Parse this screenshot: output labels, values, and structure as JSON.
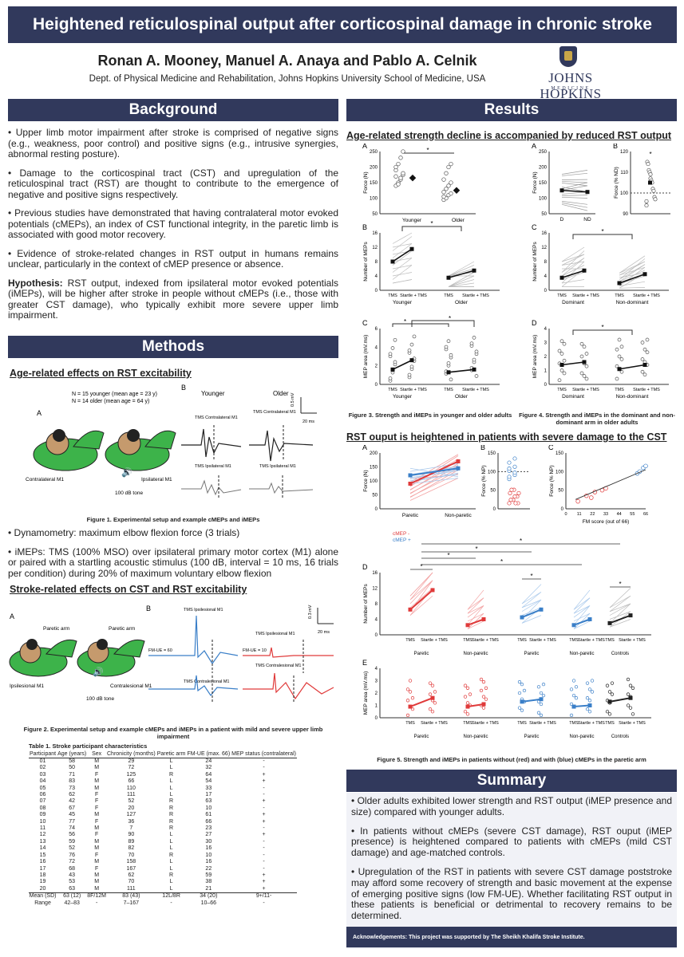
{
  "title": "Heightened reticulospinal output after corticospinal damage in chronic stroke",
  "authors": "Ronan A. Mooney, Manuel A. Anaya and Pablo A. Celnik",
  "affiliation": "Dept. of Physical Medicine and Rehabilitation, Johns Hopkins University School of Medicine, USA",
  "logo": {
    "name": "JOHNS HOPKINS",
    "sub": "MEDICINE"
  },
  "background": {
    "heading": "Background",
    "bullets": [
      "• Upper limb motor impairment after stroke is comprised of negative signs (e.g., weakness, poor control) and positive signs (e.g., intrusive synergies, abnormal resting posture).",
      "• Damage to the corticospinal tract (CST) and upregulation of the reticulospinal tract (RST) are thought to contribute to the emergence of negative and positive signs respectively.",
      "• Previous studies have demonstrated that having contralateral motor evoked potentials (cMEPs), an index of CST functional integrity, in the paretic limb is associated with good motor recovery.",
      "• Evidence of stroke-related changes in RST output in humans remains unclear, particularly in the context of cMEP presence or absence."
    ],
    "hypothesis_label": "Hypothesis:",
    "hypothesis_text": " RST output, indexed from ipsilateral motor evoked potentials (iMEPs), will be higher after stroke in people without cMEPs (i.e., those with greater CST damage), who typically exhibit more severe upper limb impairment."
  },
  "methods": {
    "heading": "Methods",
    "sub1": "Age-related effects on RST excitability",
    "fig1": {
      "n_young": "N = 15 younger (mean age = 23 y)",
      "n_old": "N = 14 older (mean age = 64 y)",
      "panel_a": "A",
      "panel_b": "B",
      "younger": "Younger",
      "older": "Older",
      "contra_m1": "Contralateral M1",
      "ipsi_m1": "Ipsilateral M1",
      "tone": "100 dB tone",
      "tms_contra": "TMS Contralateral M1",
      "tms_ipsi": "TMS Ipsilateral M1",
      "scale_mv": "0.5 mV",
      "scale_ms": "20 ms",
      "caption": "Figure 1. Experimental setup and example cMEPs and iMEPs"
    },
    "bullet_dyn": "• Dynamometry: maximum elbow flexion force (3 trials)",
    "bullet_imep": "• iMEPs: TMS (100% MSO) over ipsilateral primary motor cortex (M1) alone or paired with a startling acoustic stimulus (100 dB, interval = 10 ms, 16 trials per condition) during 20% of maximum voluntary elbow flexion",
    "sub2": "Stroke-related effects on CST and RST excitability",
    "fig2": {
      "panel_a": "A",
      "panel_b": "B",
      "paretic_arm": "Paretic arm",
      "ipsilesional": "Ipsilesional M1",
      "contralesional": "Contralesional M1",
      "tone": "100 dB tone",
      "tms_ipsilesional": "TMS Ipsilesional M1",
      "tms_contralesional": "TMS Contralesional M1",
      "fmue_60": "FM-UE = 60",
      "fmue_10": "FM-UE = 10",
      "scale_mv": "0.3 mV",
      "scale_ms": "20 ms",
      "caption": "Figure 2. Experimental setup and example cMEPs and iMEPs in a patient with mild and severe upper limb impairment"
    },
    "table": {
      "caption": "Table 1. Stroke participant characteristics",
      "headers": [
        "Participant",
        "Age (years)",
        "Sex",
        "Chronicity (months)",
        "Paretic arm",
        "FM-UE (max. 66)",
        "MEP status (contralateral)"
      ],
      "rows": [
        [
          "01",
          "58",
          "M",
          "29",
          "L",
          "24",
          "-"
        ],
        [
          "02",
          "50",
          "M",
          "72",
          "L",
          "32",
          "-"
        ],
        [
          "03",
          "71",
          "F",
          "125",
          "R",
          "64",
          "+"
        ],
        [
          "04",
          "83",
          "M",
          "66",
          "L",
          "54",
          "+"
        ],
        [
          "05",
          "73",
          "M",
          "110",
          "L",
          "33",
          "-"
        ],
        [
          "06",
          "62",
          "F",
          "111",
          "L",
          "17",
          "-"
        ],
        [
          "07",
          "42",
          "F",
          "52",
          "R",
          "63",
          "+"
        ],
        [
          "08",
          "67",
          "F",
          "20",
          "R",
          "10",
          "-"
        ],
        [
          "09",
          "45",
          "M",
          "127",
          "R",
          "61",
          "+"
        ],
        [
          "10",
          "77",
          "F",
          "36",
          "R",
          "66",
          "+"
        ],
        [
          "11",
          "74",
          "M",
          "7",
          "R",
          "23",
          "-"
        ],
        [
          "12",
          "56",
          "F",
          "90",
          "L",
          "27",
          "+"
        ],
        [
          "13",
          "59",
          "M",
          "89",
          "L",
          "30",
          "-"
        ],
        [
          "14",
          "52",
          "M",
          "82",
          "L",
          "16",
          "-"
        ],
        [
          "15",
          "76",
          "F",
          "70",
          "R",
          "10",
          "-"
        ],
        [
          "16",
          "72",
          "M",
          "158",
          "L",
          "16",
          "-"
        ],
        [
          "17",
          "68",
          "F",
          "167",
          "L",
          "22",
          "-"
        ],
        [
          "18",
          "43",
          "M",
          "62",
          "R",
          "59",
          "+"
        ],
        [
          "19",
          "53",
          "M",
          "70",
          "L",
          "38",
          "+"
        ],
        [
          "20",
          "63",
          "M",
          "111",
          "L",
          "21",
          "+"
        ]
      ],
      "mean_row": [
        "Mean (SD)",
        "63 (12)",
        "8F/12M",
        "83 (43)",
        "12L/8R",
        "34 (20)",
        "9+/11-"
      ],
      "range_row": [
        "Range",
        "42–83",
        "-",
        "7–167",
        "-",
        "10–66",
        "-"
      ]
    }
  },
  "results": {
    "heading": "Results",
    "sub1": "Age-related strength decline is accompanied by reduced RST output",
    "fig3_caption": "Figure 3. Strength and iMEPs in younger and older adults",
    "fig4_caption": "Figure 4. Strength and iMEPs in the dominant and non-dominant arm in older adults",
    "sub2": "RST ouput is heightened in patients with severe damage to the CST",
    "fig5_caption": "Figure 5. Strength and iMEPs in patients without (red) and with (blue) cMEPs in the paretic arm",
    "labels": {
      "force_n": "Force (N)",
      "force_nd": "Force (% ND)",
      "force_np": "Force (% NP)",
      "num_meps": "Number of MEPs",
      "mep_area": "MEP area (mV.ms)",
      "younger": "Younger",
      "older": "Older",
      "d": "D",
      "nd": "ND",
      "dominant": "Dominant",
      "non_dominant": "Non-dominant",
      "tms": "TMS",
      "startle": "Startle + TMS",
      "paretic": "Paretic",
      "non_paretic": "Non-paretic",
      "controls": "Controls",
      "fm_score": "FM score (out of 66)",
      "cmep_neg": "cMEP -",
      "cmep_pos": "cMEP +",
      "star": "*",
      "A": "A",
      "B": "B",
      "C": "C",
      "D": "D",
      "E": "E"
    },
    "colors": {
      "red": "#e03a3a",
      "blue": "#3a7fc8",
      "navy": "#31395c"
    },
    "ticks": {
      "f3a": [
        "250",
        "200",
        "150",
        "100",
        "50"
      ],
      "f4a": [
        "250",
        "200",
        "150",
        "100",
        "50"
      ],
      "f4b": [
        "120",
        "110",
        "100",
        "90"
      ],
      "count": [
        "16",
        "12",
        "8",
        "4",
        "0"
      ],
      "area": [
        "6",
        "4",
        "2",
        "0"
      ],
      "f5a": [
        "200",
        "150",
        "100",
        "50",
        "0"
      ],
      "f5b": [
        "150",
        "100",
        "50",
        "0"
      ],
      "f5c": [
        "150",
        "100",
        "50",
        "0"
      ],
      "f5c_x": [
        "0",
        "11",
        "22",
        "33",
        "44",
        "55",
        "66"
      ],
      "f5e": [
        "4",
        "3",
        "2",
        "1",
        "0"
      ]
    }
  },
  "summary": {
    "heading": "Summary",
    "bullets": [
      "• Older adults exhibited lower strength and RST output (iMEP presence and size) compared with younger adults.",
      "• In patients without cMEPs (severe CST damage), RST ouput (iMEP presence) is heightened compared to patients with cMEPs (mild CST damage) and age-matched controls.",
      "• Upregulation of the RST in patients with severe CST damage poststroke may afford some recovery of strength and basic movement at the expense of emerging positive signs (low FM-UE). Whether facilitating RST output in these patients is beneficial or detrimental to recovery remains to  be determined."
    ]
  },
  "acknowledgements": "Acknowledgements: This project was supported by The Sheikh Khalifa Stroke Institute.",
  "chart_data": [
    {
      "type": "scatter",
      "panel": "Fig3A",
      "ylabel": "Force (N)",
      "categories": [
        "Younger",
        "Older"
      ],
      "means": [
        165,
        125
      ],
      "ylim": [
        50,
        250
      ]
    },
    {
      "type": "line",
      "panel": "Fig3B",
      "ylabel": "Number of MEPs",
      "categories": [
        "TMS",
        "Startle + TMS"
      ],
      "series": [
        {
          "name": "Younger",
          "values": [
            8,
            11.5
          ]
        },
        {
          "name": "Older",
          "values": [
            3.5,
            5.5
          ]
        }
      ],
      "ylim": [
        0,
        16
      ]
    },
    {
      "type": "line",
      "panel": "Fig3C",
      "ylabel": "MEP area (mV.ms)",
      "categories": [
        "TMS",
        "Startle + TMS"
      ],
      "series": [
        {
          "name": "Younger",
          "values": [
            1.6,
            2.6
          ]
        },
        {
          "name": "Older",
          "values": [
            1.3,
            1.6
          ]
        }
      ],
      "ylim": [
        0,
        6
      ]
    },
    {
      "type": "line",
      "panel": "Fig4A",
      "ylabel": "Force (N)",
      "categories": [
        "D",
        "ND"
      ],
      "values": [
        125,
        120
      ],
      "ylim": [
        50,
        250
      ]
    },
    {
      "type": "scatter",
      "panel": "Fig4B",
      "ylabel": "Force (% ND)",
      "values": [
        105
      ],
      "ylim": [
        90,
        120
      ]
    },
    {
      "type": "line",
      "panel": "Fig4C",
      "ylabel": "Number of MEPs",
      "categories": [
        "TMS",
        "Startle + TMS"
      ],
      "series": [
        {
          "name": "Dominant",
          "values": [
            3.5,
            5.5
          ]
        },
        {
          "name": "Non-dominant",
          "values": [
            2,
            4.5
          ]
        }
      ],
      "ylim": [
        0,
        16
      ]
    },
    {
      "type": "line",
      "panel": "Fig4D",
      "ylabel": "MEP area (mV.ms)",
      "categories": [
        "TMS",
        "Startle + TMS"
      ],
      "series": [
        {
          "name": "Dominant",
          "values": [
            1.4,
            1.6
          ]
        },
        {
          "name": "Non-dominant",
          "values": [
            1.1,
            1.4
          ]
        }
      ],
      "ylim": [
        0,
        4
      ]
    },
    {
      "type": "line",
      "panel": "Fig5A",
      "ylabel": "Force (N)",
      "categories": [
        "Paretic",
        "Non-paretic"
      ],
      "series": [
        {
          "name": "cMEP -",
          "values": [
            90,
            170
          ]
        },
        {
          "name": "cMEP +",
          "values": [
            120,
            145
          ]
        }
      ],
      "ylim": [
        0,
        200
      ]
    },
    {
      "type": "scatter",
      "panel": "Fig5C",
      "xlabel": "FM score (out of 66)",
      "ylabel": "Force (% NP)",
      "x": [
        10,
        17,
        21,
        24,
        30,
        33,
        59,
        61,
        64,
        66
      ],
      "y": [
        20,
        35,
        30,
        45,
        50,
        55,
        95,
        100,
        110,
        115
      ]
    },
    {
      "type": "line",
      "panel": "Fig5D",
      "ylabel": "Number of MEPs",
      "groups": [
        "Paretic",
        "Non-paretic",
        "Paretic",
        "Non-paretic",
        "Controls"
      ],
      "values_tms": [
        6.5,
        2.5,
        4.5,
        2.5,
        3
      ],
      "values_startle": [
        11.5,
        4,
        6.5,
        4,
        5
      ],
      "ylim": [
        0,
        16
      ]
    },
    {
      "type": "line",
      "panel": "Fig5E",
      "ylabel": "MEP area (mV.ms)",
      "groups": [
        "Paretic",
        "Non-paretic",
        "Paretic",
        "Non-paretic",
        "Controls"
      ],
      "values_tms": [
        0.9,
        0.9,
        1.3,
        0.9,
        1.3
      ],
      "values_startle": [
        1.6,
        1.1,
        1.5,
        1.0,
        1.6
      ],
      "ylim": [
        0,
        4
      ]
    }
  ]
}
